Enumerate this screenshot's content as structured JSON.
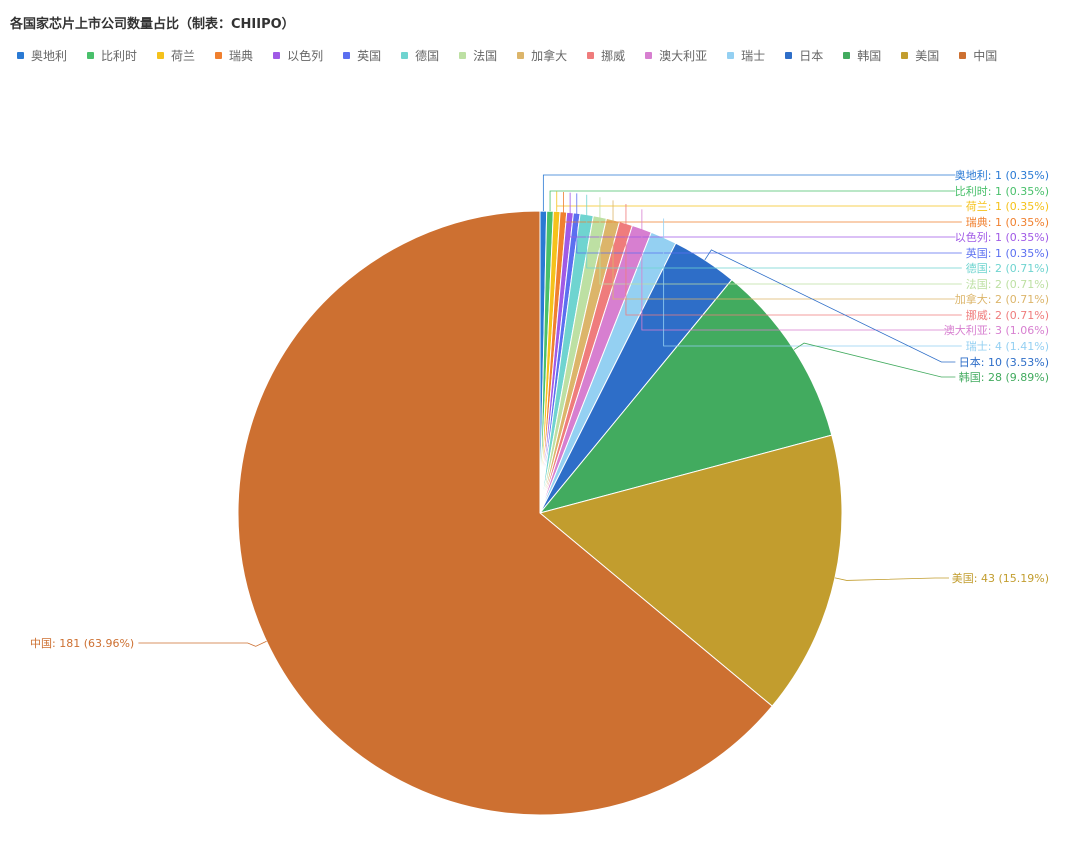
{
  "chart_data": {
    "type": "pie",
    "title": "各国家芯片上市公司数量占比（制表：CHIIPO）",
    "legend_position": "top-left",
    "slices": [
      {
        "name": "奥地利",
        "value": 1,
        "percent": "0.35%",
        "color": "#2a7ad4"
      },
      {
        "name": "比利时",
        "value": 1,
        "percent": "0.35%",
        "color": "#49c06b"
      },
      {
        "name": "荷兰",
        "value": 1,
        "percent": "0.35%",
        "color": "#f5c21b"
      },
      {
        "name": "瑞典",
        "value": 1,
        "percent": "0.35%",
        "color": "#f0802f"
      },
      {
        "name": "以色列",
        "value": 1,
        "percent": "0.35%",
        "color": "#a05ae6"
      },
      {
        "name": "英国",
        "value": 1,
        "percent": "0.35%",
        "color": "#5b6ff0"
      },
      {
        "name": "德国",
        "value": 2,
        "percent": "0.71%",
        "color": "#6fd4d0"
      },
      {
        "name": "法国",
        "value": 2,
        "percent": "0.71%",
        "color": "#bde0a3"
      },
      {
        "name": "加拿大",
        "value": 2,
        "percent": "0.71%",
        "color": "#dcb56a"
      },
      {
        "name": "挪威",
        "value": 2,
        "percent": "0.71%",
        "color": "#ef7c7c"
      },
      {
        "name": "澳大利亚",
        "value": 3,
        "percent": "1.06%",
        "color": "#d77fd0"
      },
      {
        "name": "瑞士",
        "value": 4,
        "percent": "1.41%",
        "color": "#94d0f2"
      },
      {
        "name": "日本",
        "value": 10,
        "percent": "3.53%",
        "color": "#2e6ec8"
      },
      {
        "name": "韩国",
        "value": 28,
        "percent": "9.89%",
        "color": "#42ab5f"
      },
      {
        "name": "美国",
        "value": 43,
        "percent": "15.19%",
        "color": "#c29d2e"
      },
      {
        "name": "中国",
        "value": 181,
        "percent": "63.96%",
        "color": "#cd7031"
      }
    ]
  }
}
